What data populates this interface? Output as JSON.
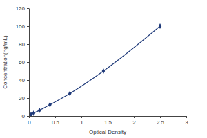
{
  "chart_data": {
    "type": "line",
    "x_label": "Optical Density",
    "y_label": "Concentration(ng/mL)",
    "x": [
      0.04,
      0.09,
      0.2,
      0.4,
      0.78,
      1.42,
      2.5
    ],
    "values": [
      1.56,
      3.13,
      6.25,
      12.5,
      25,
      50,
      100
    ],
    "color": "#1f3a7a",
    "marker": "diamond",
    "xlim": [
      0,
      3
    ],
    "xticks": [
      0,
      0.5,
      1,
      1.5,
      2,
      2.5,
      3
    ],
    "ylim": [
      0,
      120
    ],
    "yticks": [
      0,
      20,
      40,
      60,
      80,
      100,
      120
    ],
    "grid": false
  }
}
